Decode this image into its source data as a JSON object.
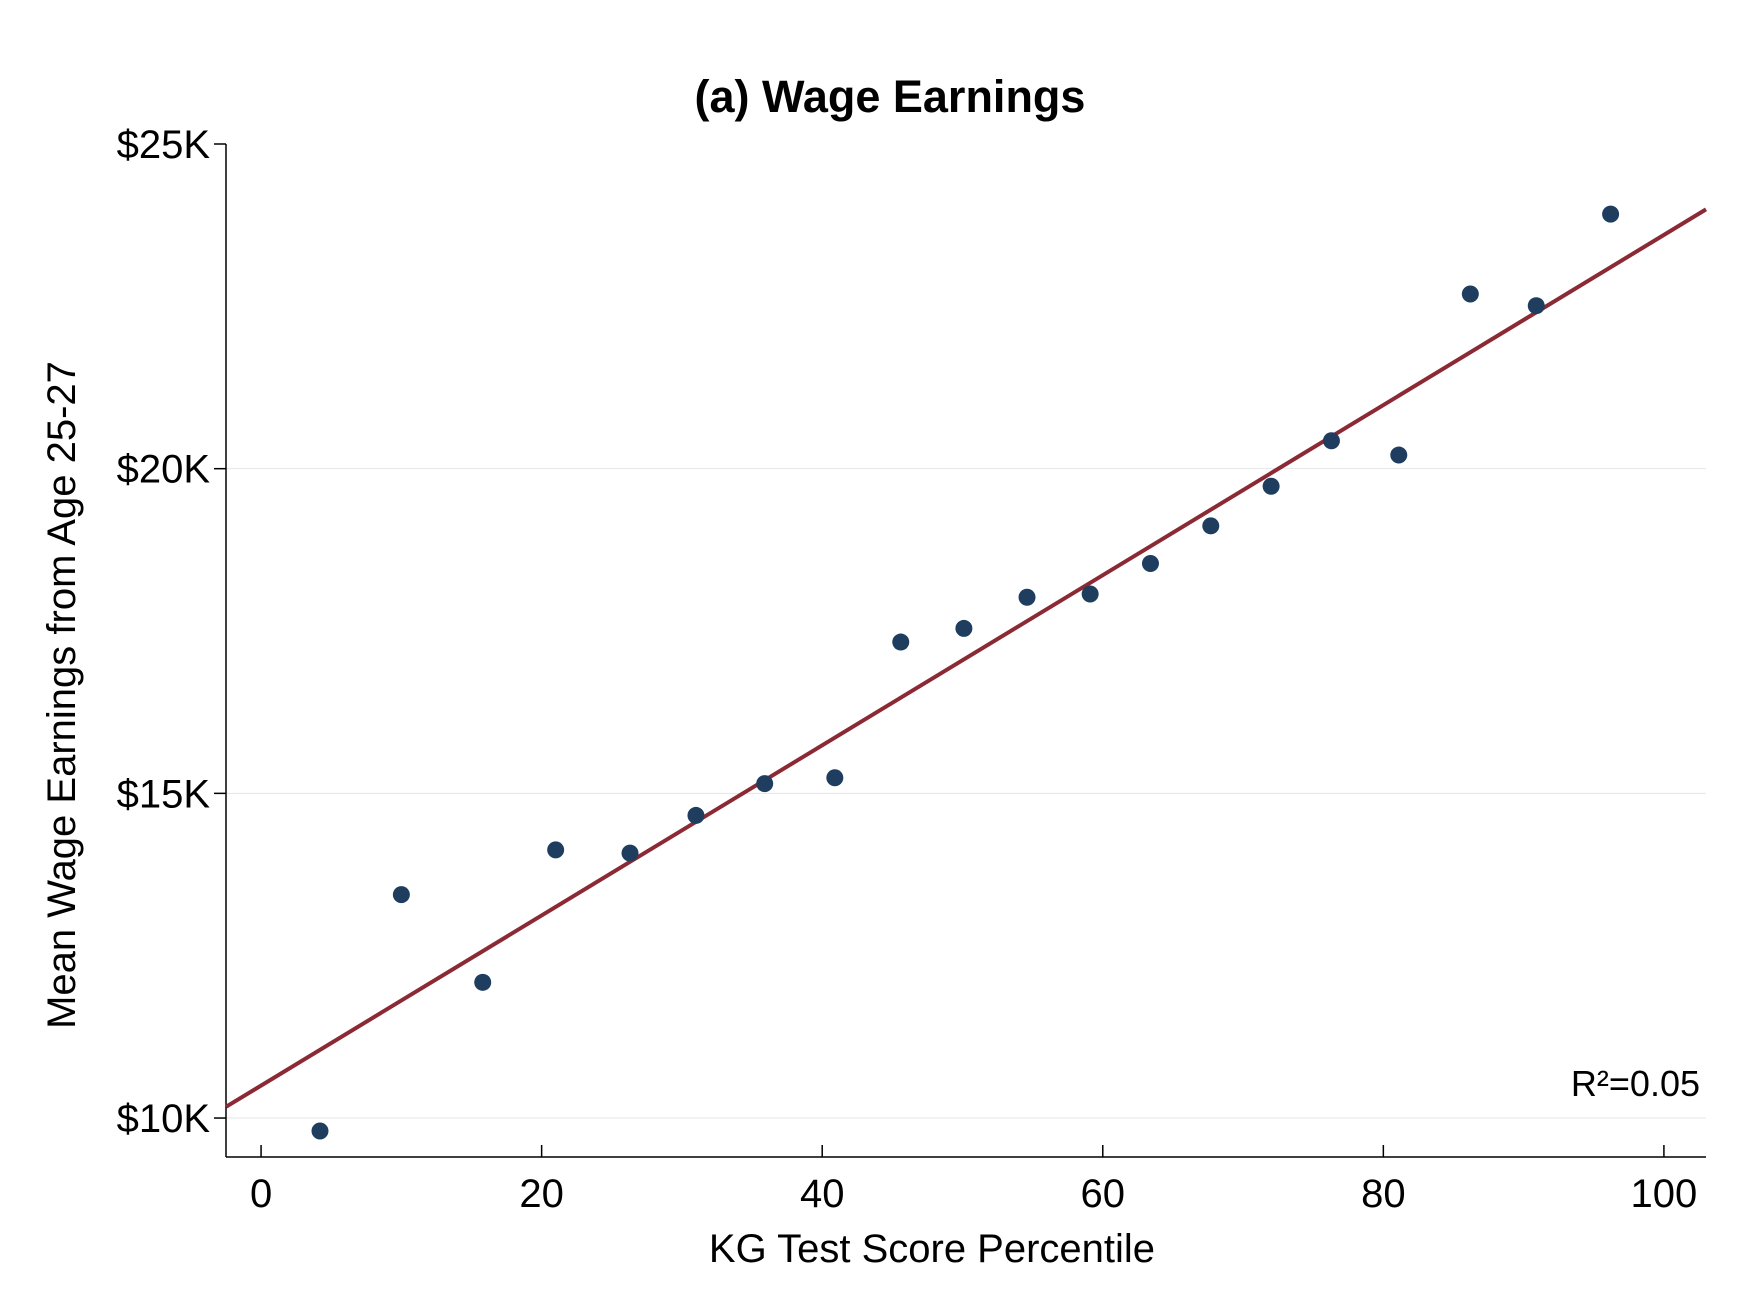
{
  "chart_data": {
    "type": "scatter",
    "title": "(a) Wage Earnings",
    "xlabel": "KG Test Score Percentile",
    "ylabel": "Mean Wage Earnings from Age 25-27",
    "xlim": [
      -2.5,
      103
    ],
    "ylim": [
      9400,
      25000
    ],
    "x_ticks": [
      0,
      20,
      40,
      60,
      80,
      100
    ],
    "x_tick_labels": [
      "0",
      "20",
      "40",
      "60",
      "80",
      "100"
    ],
    "y_ticks": [
      10000,
      15000,
      20000,
      25000
    ],
    "y_tick_labels": [
      "$10K",
      "$15K",
      "$20K",
      "$25K"
    ],
    "grid": "horizontal",
    "series": [
      {
        "color": "#1f3d5e",
        "x": [
          4.2,
          10.0,
          15.8,
          21.0,
          26.3,
          31.0,
          35.9,
          40.9,
          45.6,
          50.1,
          54.6,
          59.1,
          63.4,
          67.7,
          72.0,
          76.3,
          81.1,
          86.2,
          90.9,
          96.2
        ],
        "y": [
          9800,
          13440,
          12090,
          14130,
          14080,
          14660,
          15150,
          15240,
          17330,
          17540,
          18020,
          18070,
          18540,
          19120,
          19730,
          20430,
          20210,
          22690,
          22510,
          23920
        ]
      }
    ],
    "fit_line": {
      "color": "#8b2a34",
      "intercept": 10500,
      "slope": 131,
      "x_range": [
        -2.5,
        103
      ]
    },
    "annotation": "R²=0.05"
  }
}
